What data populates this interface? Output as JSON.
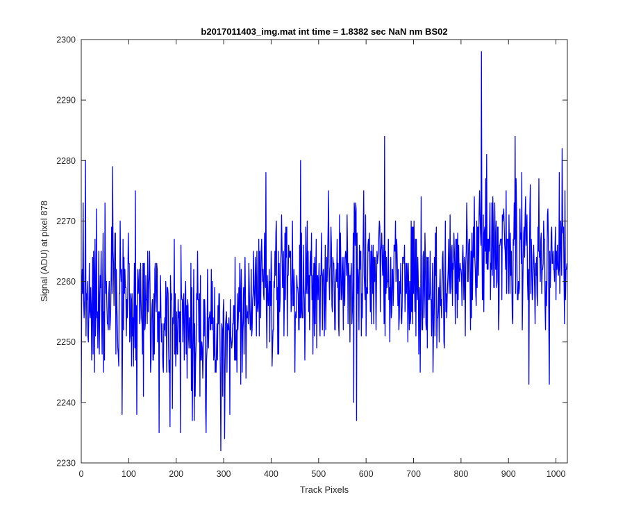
{
  "chart_data": {
    "type": "line",
    "title": "b2017011403_img.mat int time = 1.8382 sec  NaN nm BS02",
    "xlabel": "Track Pixels",
    "ylabel": "Signal (ADU) at pixel 878",
    "xlim": [
      0,
      1024
    ],
    "ylim": [
      2230,
      2300
    ],
    "xticks": [
      0,
      100,
      200,
      300,
      400,
      500,
      600,
      700,
      800,
      900,
      1000
    ],
    "yticks": [
      2230,
      2240,
      2250,
      2260,
      2270,
      2280,
      2290,
      2300
    ],
    "grid": false,
    "legend": "none",
    "series": [
      {
        "color": "#0000ff",
        "baseline_x": [
          0,
          50,
          100,
          150,
          200,
          250,
          300,
          350,
          400,
          450,
          500,
          550,
          600,
          650,
          700,
          750,
          800,
          850,
          900,
          950,
          1023
        ],
        "baseline_y": [
          2258,
          2259,
          2257,
          2254,
          2253,
          2252,
          2252,
          2255,
          2258,
          2259,
          2261,
          2260,
          2261,
          2260,
          2259,
          2259,
          2262,
          2264,
          2264,
          2263,
          2264
        ],
        "noise_amplitude": 6.5,
        "spikes": [
          {
            "x": 0,
            "y": 2240
          },
          {
            "x": 4,
            "y": 2273
          },
          {
            "x": 9,
            "y": 2280
          },
          {
            "x": 14,
            "y": 2251
          },
          {
            "x": 66,
            "y": 2279
          },
          {
            "x": 86,
            "y": 2238
          },
          {
            "x": 114,
            "y": 2275
          },
          {
            "x": 117,
            "y": 2238
          },
          {
            "x": 164,
            "y": 2235
          },
          {
            "x": 187,
            "y": 2236
          },
          {
            "x": 209,
            "y": 2235
          },
          {
            "x": 234,
            "y": 2237
          },
          {
            "x": 263,
            "y": 2235
          },
          {
            "x": 294,
            "y": 2232
          },
          {
            "x": 302,
            "y": 2234
          },
          {
            "x": 389,
            "y": 2278
          },
          {
            "x": 462,
            "y": 2280
          },
          {
            "x": 574,
            "y": 2240
          },
          {
            "x": 580,
            "y": 2237
          },
          {
            "x": 639,
            "y": 2284
          },
          {
            "x": 843,
            "y": 2298
          },
          {
            "x": 854,
            "y": 2281
          },
          {
            "x": 914,
            "y": 2284
          },
          {
            "x": 943,
            "y": 2243
          },
          {
            "x": 986,
            "y": 2243
          },
          {
            "x": 1013,
            "y": 2282
          },
          {
            "x": 1018,
            "y": 2253
          }
        ]
      }
    ]
  }
}
